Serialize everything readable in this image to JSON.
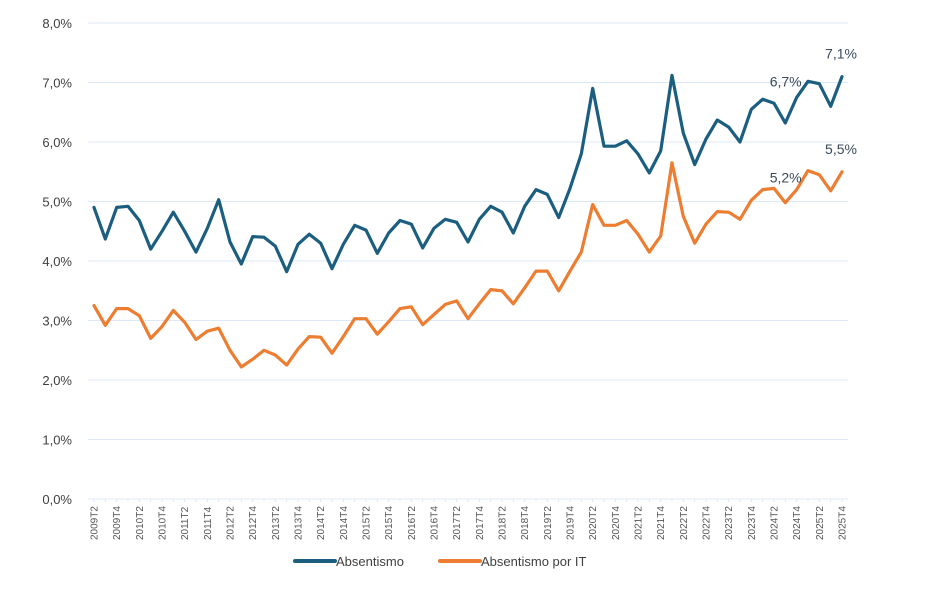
{
  "chart_data": {
    "type": "line",
    "title": "",
    "xlabel": "",
    "ylabel": "",
    "ylim": [
      0,
      8
    ],
    "y_ticks": [
      "0,0%",
      "1,0%",
      "2,0%",
      "3,0%",
      "4,0%",
      "5,0%",
      "6,0%",
      "7,0%",
      "8,0%"
    ],
    "x_tick_labels": [
      "2009T2",
      "2009T4",
      "2010T2",
      "2010T4",
      "2011T2",
      "2011T4",
      "2012T2",
      "2012T4",
      "2013T2",
      "2013T4",
      "2014T2",
      "2014T4",
      "2015T2",
      "2015T4",
      "2016T2",
      "2016T4",
      "2017T2",
      "2017T4",
      "2018T2",
      "2018T4",
      "2019T2",
      "2019T4",
      "2020T2",
      "2020T4",
      "2021T2",
      "2021T4",
      "2022T2",
      "2022T4",
      "2023T2",
      "2023T4",
      "2024T2",
      "2024T4",
      "2025T2",
      "2025T4"
    ],
    "x_start": "2009T2",
    "x_end": "2025T4",
    "grid": true,
    "legend_position": "bottom-center",
    "series": [
      {
        "name": "Absentismo",
        "color": "#1b5e80",
        "values": [
          4.9,
          4.37,
          4.9,
          4.92,
          4.68,
          4.2,
          4.5,
          4.82,
          4.5,
          4.15,
          4.55,
          5.03,
          4.32,
          3.95,
          4.41,
          4.4,
          4.25,
          3.82,
          4.28,
          4.45,
          4.3,
          3.87,
          4.28,
          4.6,
          4.52,
          4.13,
          4.47,
          4.68,
          4.62,
          4.22,
          4.55,
          4.7,
          4.65,
          4.32,
          4.7,
          4.92,
          4.82,
          4.47,
          4.92,
          5.2,
          5.12,
          4.73,
          5.22,
          5.8,
          6.9,
          5.93,
          5.93,
          6.02,
          5.8,
          5.48,
          5.85,
          7.12,
          6.15,
          5.62,
          6.05,
          6.37,
          6.25,
          6.0,
          6.55,
          6.72,
          6.65,
          6.32,
          6.75,
          7.02,
          6.98,
          6.6,
          7.1
        ]
      },
      {
        "name": "Absentismo por IT",
        "color": "#ed7d31",
        "values": [
          3.25,
          2.92,
          3.2,
          3.2,
          3.08,
          2.7,
          2.9,
          3.17,
          2.97,
          2.68,
          2.82,
          2.87,
          2.5,
          2.22,
          2.35,
          2.5,
          2.42,
          2.25,
          2.52,
          2.73,
          2.72,
          2.45,
          2.73,
          3.03,
          3.03,
          2.77,
          2.98,
          3.2,
          3.23,
          2.93,
          3.1,
          3.27,
          3.33,
          3.03,
          3.28,
          3.52,
          3.5,
          3.28,
          3.55,
          3.83,
          3.83,
          3.5,
          3.83,
          4.15,
          4.95,
          4.6,
          4.6,
          4.68,
          4.45,
          4.15,
          4.42,
          5.65,
          4.75,
          4.3,
          4.62,
          4.83,
          4.82,
          4.7,
          5.02,
          5.2,
          5.22,
          4.98,
          5.2,
          5.52,
          5.45,
          5.18,
          5.5
        ]
      }
    ],
    "annotations": [
      {
        "series": 0,
        "x": "2024T4",
        "text": "6,7%"
      },
      {
        "series": 0,
        "x": "2025T4",
        "text": "7,1%"
      },
      {
        "series": 1,
        "x": "2024T4",
        "text": "5,2%"
      },
      {
        "series": 1,
        "x": "2025T4",
        "text": "5,5%"
      }
    ]
  }
}
